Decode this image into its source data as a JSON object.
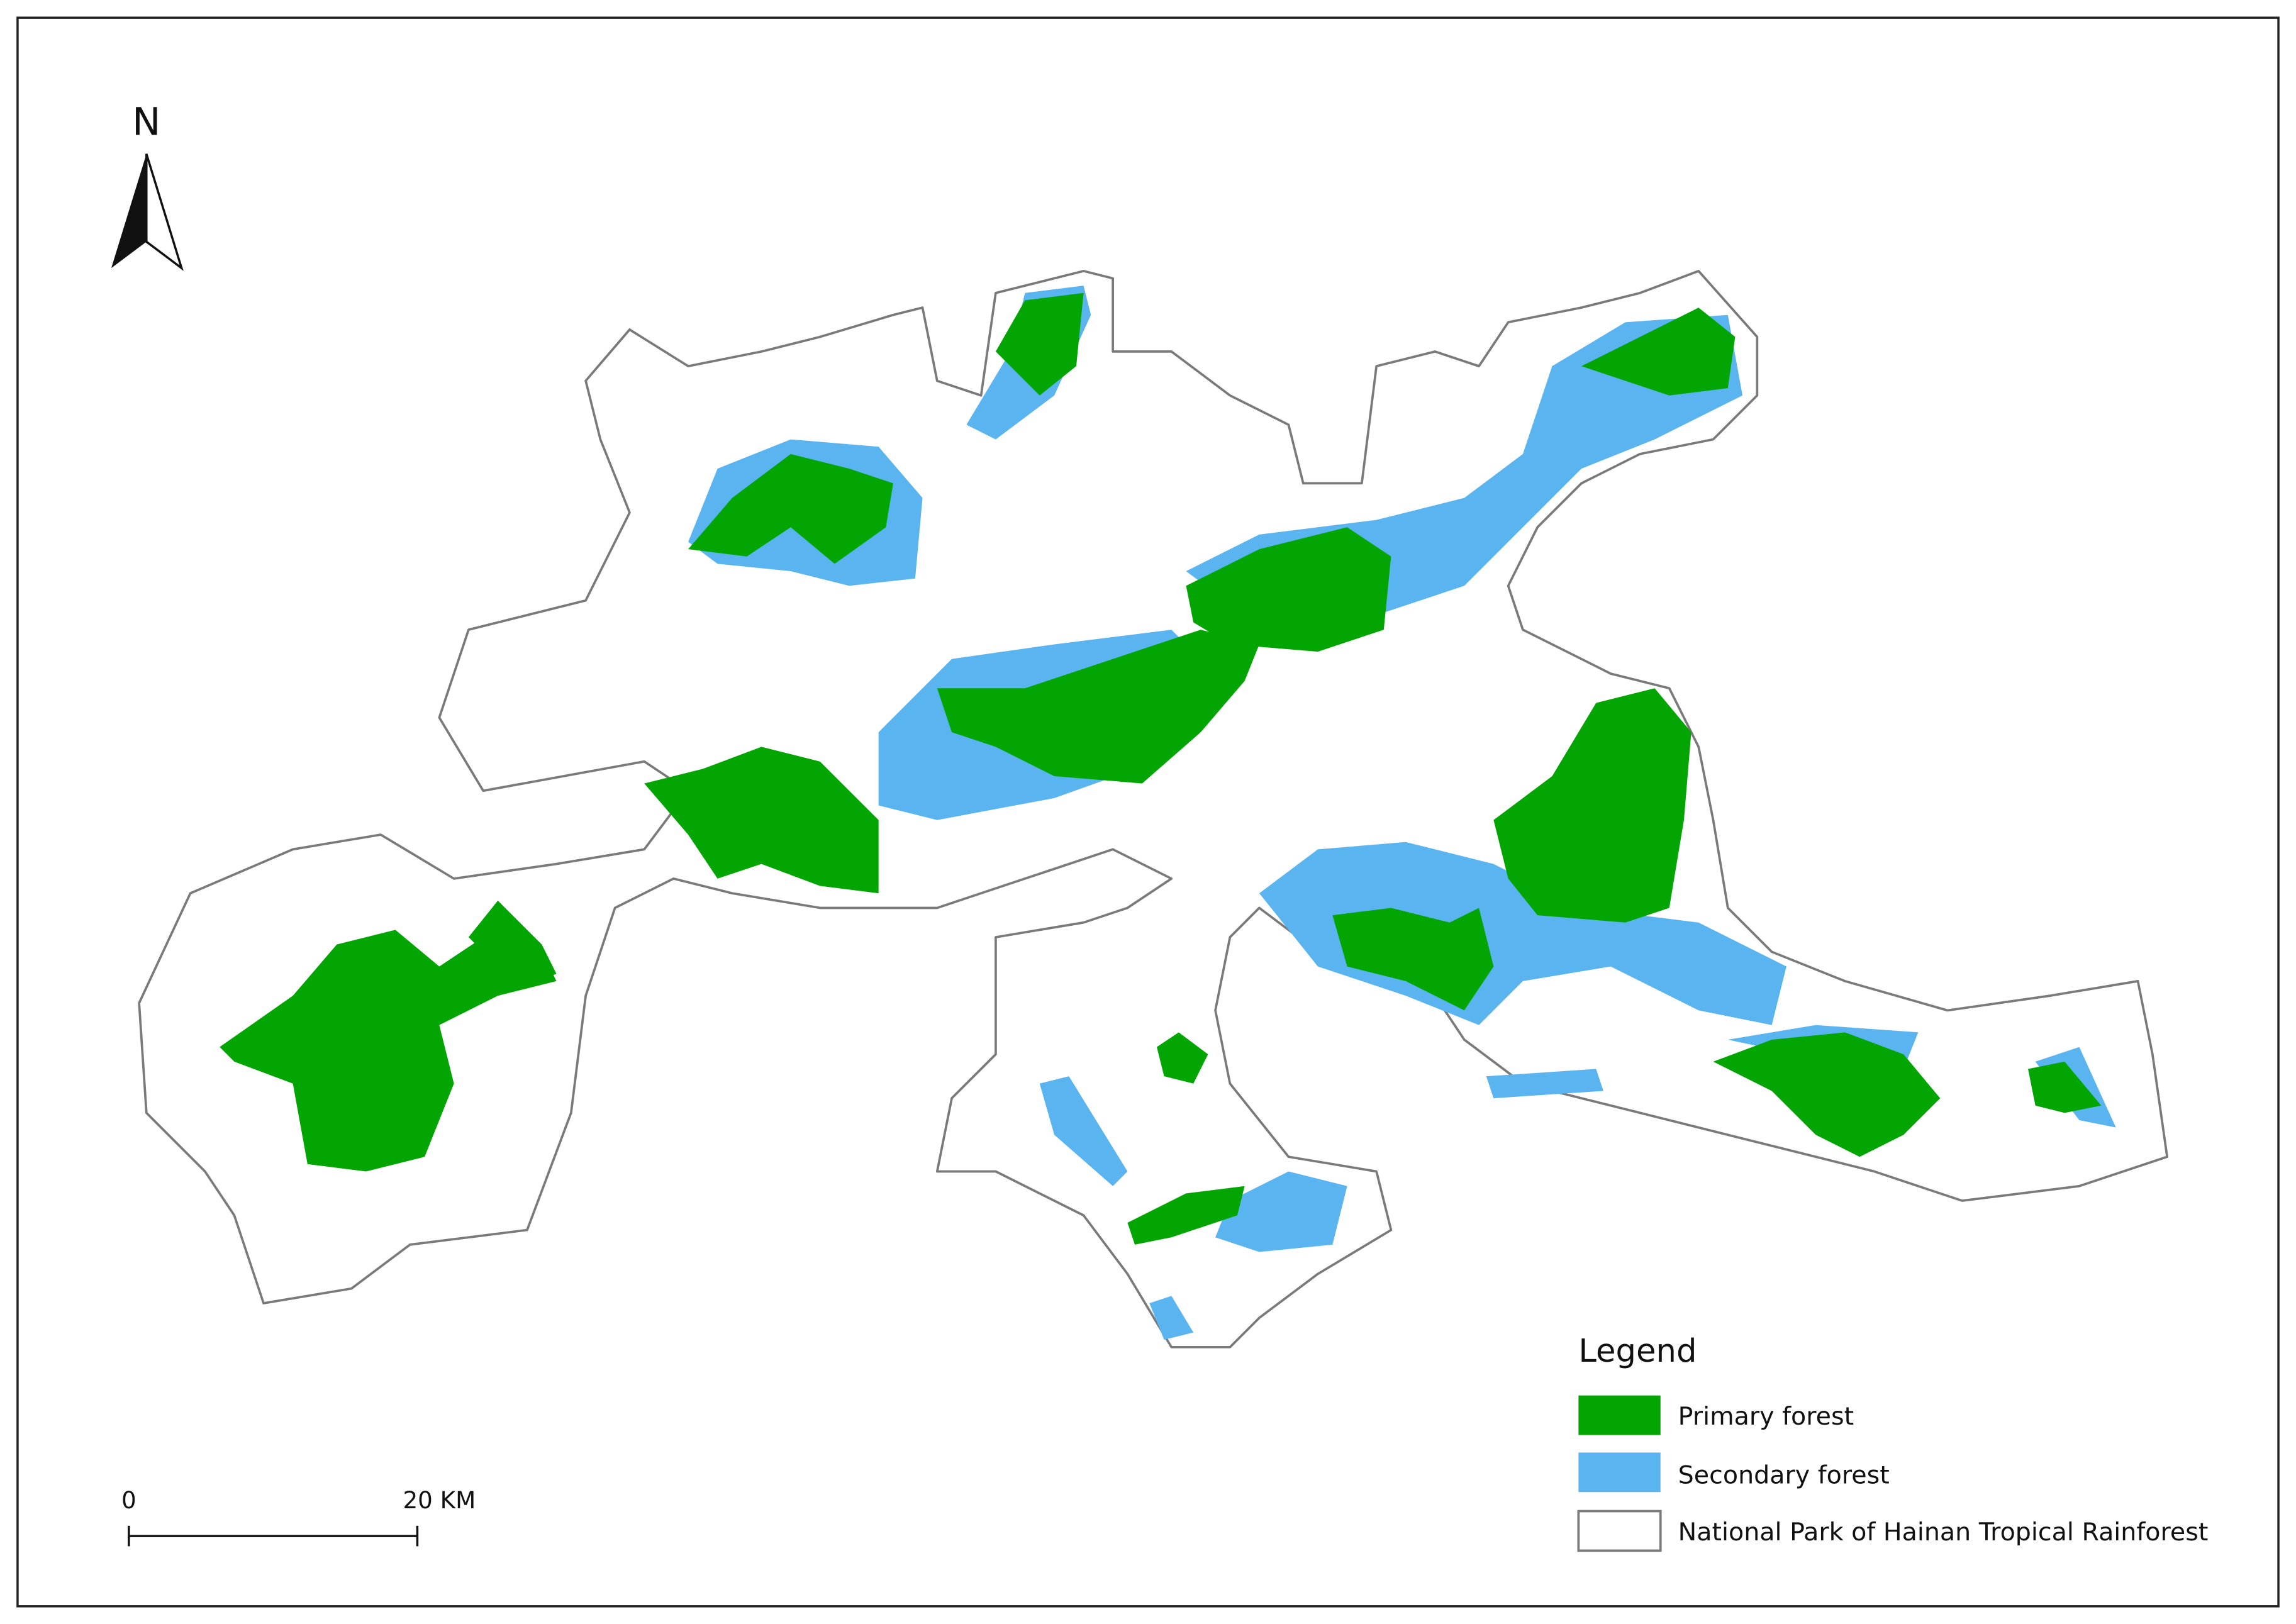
{
  "north_arrow": {
    "label": "N"
  },
  "legend": {
    "title": "Legend",
    "items": [
      "Primary forest",
      "Secondary forest",
      "National Park of Hainan Tropical Rainforest"
    ]
  },
  "scale_bar": {
    "labels": [
      "0",
      "20 KM"
    ]
  }
}
